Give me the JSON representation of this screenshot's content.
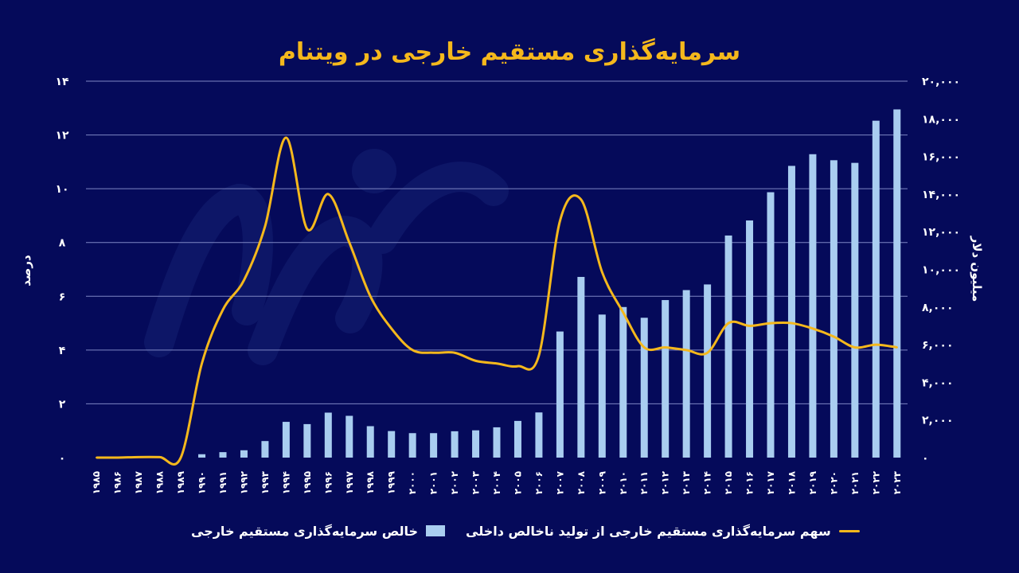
{
  "chart_data": {
    "type": "bar+line",
    "title": "سرمایه‌گذاری مستقیم خارجی در ویتنام",
    "left_axis_label": "درصد",
    "right_axis_label": "میلیون دلار",
    "left_ylim": [
      0,
      14
    ],
    "right_ylim": [
      0,
      20000
    ],
    "left_ticks": [
      "۰",
      "۲",
      "۴",
      "۶",
      "۸",
      "۱۰",
      "۱۲",
      "۱۴"
    ],
    "right_ticks": [
      "۰",
      "۲,۰۰۰",
      "۴,۰۰۰",
      "۶,۰۰۰",
      "۸,۰۰۰",
      "۱۰,۰۰۰",
      "۱۲,۰۰۰",
      "۱۴,۰۰۰",
      "۱۶,۰۰۰",
      "۱۸,۰۰۰",
      "۲۰,۰۰۰"
    ],
    "left_tick_values": [
      0,
      2,
      4,
      6,
      8,
      10,
      12,
      14
    ],
    "right_tick_values": [
      0,
      2000,
      4000,
      6000,
      8000,
      10000,
      12000,
      14000,
      16000,
      18000,
      20000
    ],
    "categories": [
      "۱۹۸۵",
      "۱۹۸۶",
      "۱۹۸۷",
      "۱۹۸۸",
      "۱۹۸۹",
      "۱۹۹۰",
      "۱۹۹۱",
      "۱۹۹۲",
      "۱۹۹۳",
      "۱۹۹۴",
      "۱۹۹۵",
      "۱۹۹۶",
      "۱۹۹۷",
      "۱۹۹۸",
      "۱۹۹۹",
      "۲۰۰۰",
      "۲۰۰۱",
      "۲۰۰۲",
      "۲۰۰۳",
      "۲۰۰۴",
      "۲۰۰۵",
      "۲۰۰۶",
      "۲۰۰۷",
      "۲۰۰۸",
      "۲۰۰۹",
      "۲۰۱۰",
      "۲۰۱۱",
      "۲۰۱۲",
      "۲۰۱۳",
      "۲۰۱۴",
      "۲۰۱۵",
      "۲۰۱۶",
      "۲۰۱۷",
      "۲۰۱۸",
      "۲۰۱۹",
      "۲۰۲۰",
      "۲۰۲۱",
      "۲۰۲۲",
      "۲۰۲۳"
    ],
    "series": [
      {
        "name": "خالص سرمایه‌گذاری مستقیم خارجی",
        "kind": "bar",
        "axis": "right",
        "color": "#a9cdf0",
        "values": [
          0,
          0,
          0,
          0,
          0,
          180,
          290,
          390,
          880,
          1900,
          1780,
          2390,
          2220,
          1670,
          1410,
          1300,
          1300,
          1400,
          1450,
          1610,
          1950,
          2400,
          6700,
          9600,
          7600,
          8000,
          7430,
          8370,
          8900,
          9200,
          11800,
          12600,
          14100,
          15500,
          16120,
          15800,
          15660,
          17900,
          18500
        ]
      },
      {
        "name": "سهم سرمایه‌گذاری مستقیم خارجی از تولید ناخالص داخلی",
        "kind": "line",
        "axis": "left",
        "color": "#f5b81c",
        "values": [
          0,
          0,
          0.02,
          0.02,
          0,
          3.5,
          5.5,
          6.6,
          8.6,
          11.9,
          8.5,
          9.8,
          8.0,
          6.0,
          4.8,
          4.0,
          3.9,
          3.9,
          3.6,
          3.5,
          3.4,
          3.8,
          8.8,
          9.6,
          6.9,
          5.4,
          4.1,
          4.1,
          4.0,
          3.9,
          5.0,
          4.9,
          5.0,
          5.0,
          4.8,
          4.5,
          4.1,
          4.2,
          4.1
        ]
      }
    ],
    "grid": true,
    "legend_position": "bottom"
  }
}
